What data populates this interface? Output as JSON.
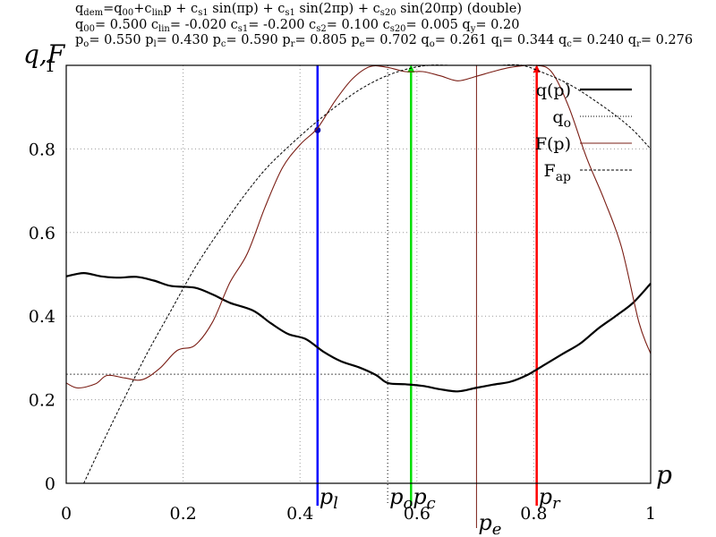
{
  "header": {
    "formula_parts": [
      [
        "q",
        "dem"
      ],
      [
        "=q",
        "00"
      ],
      [
        "+c",
        "lin"
      ],
      [
        "p + c",
        "s1"
      ],
      [
        " sin(πp) + c",
        "s1"
      ],
      [
        " sin(2πp) +  c",
        "s20"
      ],
      [
        " sin(20πp) (double)",
        ""
      ]
    ],
    "coeff_parts": [
      [
        "q",
        "00"
      ],
      [
        "= 0.500 c",
        "lin"
      ],
      [
        "= -0.020 c",
        "s1"
      ],
      [
        "= -0.200 c",
        "s2"
      ],
      [
        "= 0.100 c",
        "s20"
      ],
      [
        "= 0.005 q",
        "y"
      ],
      [
        "= 0.20",
        ""
      ]
    ],
    "points_parts": [
      [
        "p",
        "o"
      ],
      [
        "= 0.550 p",
        "l"
      ],
      [
        "= 0.430 p",
        "c"
      ],
      [
        "= 0.590 p",
        "r"
      ],
      [
        "= 0.805 p",
        "e"
      ],
      [
        "= 0.702 q",
        "o"
      ],
      [
        "= 0.261 q",
        "l"
      ],
      [
        "= 0.344 q",
        "c"
      ],
      [
        "= 0.240 q",
        "r"
      ],
      [
        "= 0.276",
        ""
      ]
    ]
  },
  "chart_data": {
    "type": "line",
    "ylabel": "q,F",
    "xlabel": "p",
    "xlim": [
      0,
      1
    ],
    "ylim": [
      0,
      1
    ],
    "x_ticks": [
      0,
      0.2,
      0.4,
      0.6,
      0.8,
      1
    ],
    "x_tick_labels": [
      "0",
      "0.2",
      "0.4",
      "0.6",
      "0.8",
      "1"
    ],
    "y_ticks": [
      0,
      0.2,
      0.4,
      0.6,
      0.8,
      1
    ],
    "y_tick_labels": [
      "0",
      "0.2",
      "0.4",
      "0.6",
      "0.8",
      "1"
    ],
    "grid": true,
    "legend_position": "top-right",
    "legend": [
      {
        "label": "q",
        "sub": "",
        "suffix": "(p)",
        "style": "solid",
        "color": "#000000"
      },
      {
        "label": "q",
        "sub": "o",
        "suffix": "",
        "style": "dotted",
        "color": "#000000"
      },
      {
        "label": "F",
        "sub": "",
        "suffix": "(p)",
        "style": "solid",
        "color": "#7a1d14"
      },
      {
        "label": "F",
        "sub": "ap",
        "suffix": "",
        "style": "dashed",
        "color": "#000000"
      }
    ],
    "series": [
      {
        "key": "q",
        "color": "#000000",
        "points": [
          [
            0,
            0.495
          ],
          [
            0.03,
            0.503
          ],
          [
            0.06,
            0.495
          ],
          [
            0.09,
            0.492
          ],
          [
            0.12,
            0.494
          ],
          [
            0.15,
            0.485
          ],
          [
            0.18,
            0.472
          ],
          [
            0.22,
            0.468
          ],
          [
            0.25,
            0.452
          ],
          [
            0.28,
            0.432
          ],
          [
            0.32,
            0.413
          ],
          [
            0.35,
            0.383
          ],
          [
            0.38,
            0.357
          ],
          [
            0.41,
            0.345
          ],
          [
            0.44,
            0.315
          ],
          [
            0.47,
            0.292
          ],
          [
            0.5,
            0.278
          ],
          [
            0.53,
            0.259
          ],
          [
            0.55,
            0.24
          ],
          [
            0.58,
            0.237
          ],
          [
            0.61,
            0.233
          ],
          [
            0.64,
            0.225
          ],
          [
            0.67,
            0.22
          ],
          [
            0.7,
            0.228
          ],
          [
            0.73,
            0.236
          ],
          [
            0.76,
            0.243
          ],
          [
            0.79,
            0.26
          ],
          [
            0.82,
            0.285
          ],
          [
            0.85,
            0.31
          ],
          [
            0.88,
            0.335
          ],
          [
            0.91,
            0.37
          ],
          [
            0.94,
            0.4
          ],
          [
            0.97,
            0.432
          ],
          [
            1.0,
            0.478
          ]
        ]
      },
      {
        "key": "F",
        "color": "#7a1d14",
        "points": [
          [
            0,
            0.24
          ],
          [
            0.02,
            0.228
          ],
          [
            0.05,
            0.238
          ],
          [
            0.07,
            0.258
          ],
          [
            0.1,
            0.252
          ],
          [
            0.13,
            0.248
          ],
          [
            0.16,
            0.275
          ],
          [
            0.19,
            0.318
          ],
          [
            0.22,
            0.33
          ],
          [
            0.25,
            0.385
          ],
          [
            0.28,
            0.48
          ],
          [
            0.31,
            0.55
          ],
          [
            0.34,
            0.66
          ],
          [
            0.37,
            0.755
          ],
          [
            0.4,
            0.81
          ],
          [
            0.43,
            0.85
          ],
          [
            0.46,
            0.915
          ],
          [
            0.49,
            0.968
          ],
          [
            0.52,
            0.997
          ],
          [
            0.55,
            0.995
          ],
          [
            0.58,
            0.985
          ],
          [
            0.61,
            0.985
          ],
          [
            0.64,
            0.975
          ],
          [
            0.67,
            0.963
          ],
          [
            0.7,
            0.973
          ],
          [
            0.73,
            0.985
          ],
          [
            0.76,
            0.995
          ],
          [
            0.8,
            1.0
          ],
          [
            0.83,
            0.985
          ],
          [
            0.86,
            0.9
          ],
          [
            0.89,
            0.78
          ],
          [
            0.92,
            0.68
          ],
          [
            0.95,
            0.565
          ],
          [
            0.98,
            0.385
          ],
          [
            1.0,
            0.31
          ]
        ]
      },
      {
        "key": "Fap",
        "color": "#000000",
        "points": [
          [
            0.03,
            0.0
          ],
          [
            0.06,
            0.09
          ],
          [
            0.1,
            0.205
          ],
          [
            0.14,
            0.315
          ],
          [
            0.18,
            0.415
          ],
          [
            0.22,
            0.515
          ],
          [
            0.26,
            0.6
          ],
          [
            0.3,
            0.68
          ],
          [
            0.34,
            0.75
          ],
          [
            0.38,
            0.805
          ],
          [
            0.42,
            0.855
          ],
          [
            0.46,
            0.9
          ],
          [
            0.5,
            0.94
          ],
          [
            0.54,
            0.97
          ],
          [
            0.58,
            0.99
          ],
          [
            0.62,
            1.0
          ],
          [
            0.66,
            1.0
          ],
          [
            0.7,
            1.0
          ],
          [
            0.74,
            1.0
          ],
          [
            0.78,
            1.0
          ],
          [
            0.82,
            0.98
          ],
          [
            0.86,
            0.955
          ],
          [
            0.9,
            0.92
          ],
          [
            0.94,
            0.88
          ],
          [
            0.97,
            0.845
          ],
          [
            1.0,
            0.8
          ]
        ]
      }
    ],
    "qo_level": 0.261,
    "vlines": [
      {
        "key": "pl",
        "x": 0.43,
        "color": "#0000ff",
        "label": "p",
        "sub": "l",
        "arrow": false,
        "marker_y": 0.845,
        "label_row": 1
      },
      {
        "key": "po",
        "x": 0.55,
        "color": "#000000",
        "label": "p",
        "sub": "o",
        "arrow": false,
        "thin": true,
        "dotted": true,
        "label_row": 1
      },
      {
        "key": "pc",
        "x": 0.59,
        "color": "#00dd00",
        "label": "p",
        "sub": "c",
        "arrow": true,
        "label_row": 1
      },
      {
        "key": "pr",
        "x": 0.805,
        "color": "#ff0000",
        "label": "p",
        "sub": "r",
        "arrow": true,
        "label_row": 1
      },
      {
        "key": "pe",
        "x": 0.702,
        "color": "#7a1d14",
        "label": "p",
        "sub": "e",
        "arrow": false,
        "thin": true,
        "label_row": 2
      }
    ]
  }
}
